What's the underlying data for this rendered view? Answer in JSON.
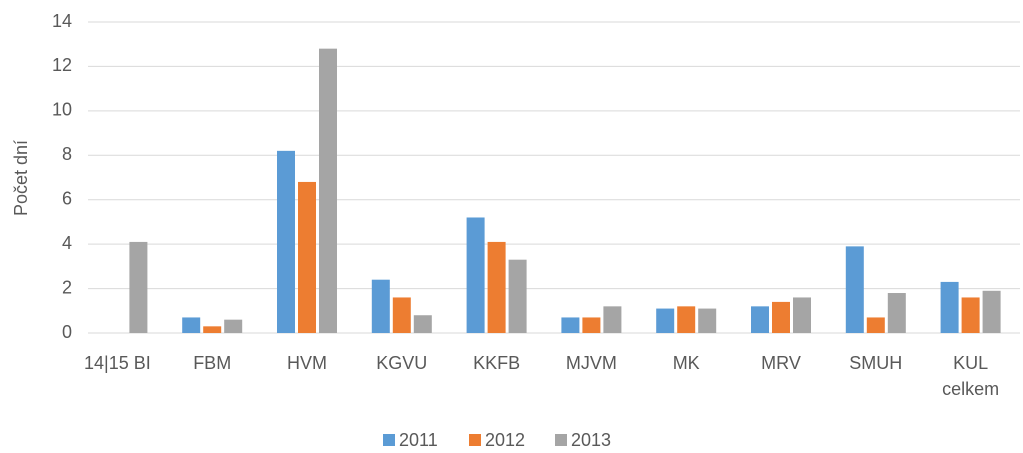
{
  "chart_data": {
    "type": "bar",
    "y_label": "Počet dní",
    "categories": [
      "14|15 BI",
      "FBM",
      "HVM",
      "KGVU",
      "KKFB",
      "MJVM",
      "MK",
      "MRV",
      "SMUH",
      "KUL celkem"
    ],
    "series": [
      {
        "name": "2011",
        "color": "#5b9bd5",
        "values": [
          null,
          0.7,
          8.2,
          2.4,
          5.2,
          0.7,
          1.1,
          1.2,
          3.9,
          2.3
        ]
      },
      {
        "name": "2012",
        "color": "#ed7d31",
        "values": [
          null,
          0.3,
          6.8,
          1.6,
          4.1,
          0.7,
          1.2,
          1.4,
          0.7,
          1.6
        ]
      },
      {
        "name": "2013",
        "color": "#a5a5a5",
        "values": [
          4.1,
          0.6,
          12.8,
          0.8,
          3.3,
          1.2,
          1.1,
          1.6,
          1.8,
          1.9
        ]
      }
    ],
    "ylim": [
      0,
      14
    ],
    "yticks": [
      0,
      2,
      4,
      6,
      8,
      10,
      12,
      14
    ],
    "grid": true,
    "legend": "bottom"
  }
}
